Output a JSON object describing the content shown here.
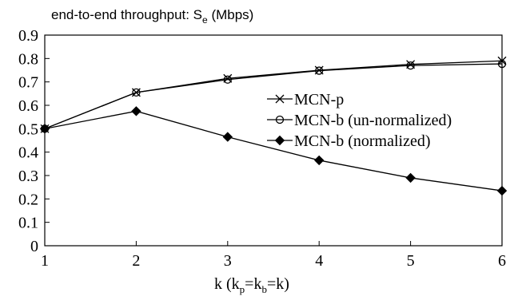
{
  "chart_data": {
    "type": "line",
    "title_parts": {
      "main": "end-to-end throughput: S",
      "sub": "e",
      "unit": " (Mbps)"
    },
    "xlabel_parts": {
      "prefix": "k (k",
      "sub1": "p",
      "mid": "=k",
      "sub2": "b",
      "suffix": "=k)"
    },
    "x": [
      1,
      2,
      3,
      4,
      5,
      6
    ],
    "xlim": [
      1,
      6
    ],
    "ylim": [
      0,
      0.9
    ],
    "x_ticks": [
      "1",
      "2",
      "3",
      "4",
      "5",
      "6"
    ],
    "y_ticks": [
      "0",
      "0.1",
      "0.2",
      "0.3",
      "0.4",
      "0.5",
      "0.6",
      "0.7",
      "0.8",
      "0.9"
    ],
    "grid": false,
    "legend_position": "center-right",
    "series": [
      {
        "name": "MCN-p",
        "marker": "x-cross",
        "values": [
          0.5,
          0.655,
          0.715,
          0.75,
          0.775,
          0.79
        ]
      },
      {
        "name": "MCN-b (un-normalized)",
        "marker": "open-circle",
        "values": [
          0.5,
          0.655,
          0.71,
          0.748,
          0.77,
          0.777
        ]
      },
      {
        "name": "MCN-b (normalized)",
        "marker": "filled-diamond",
        "values": [
          0.5,
          0.575,
          0.465,
          0.365,
          0.29,
          0.235
        ]
      }
    ]
  }
}
